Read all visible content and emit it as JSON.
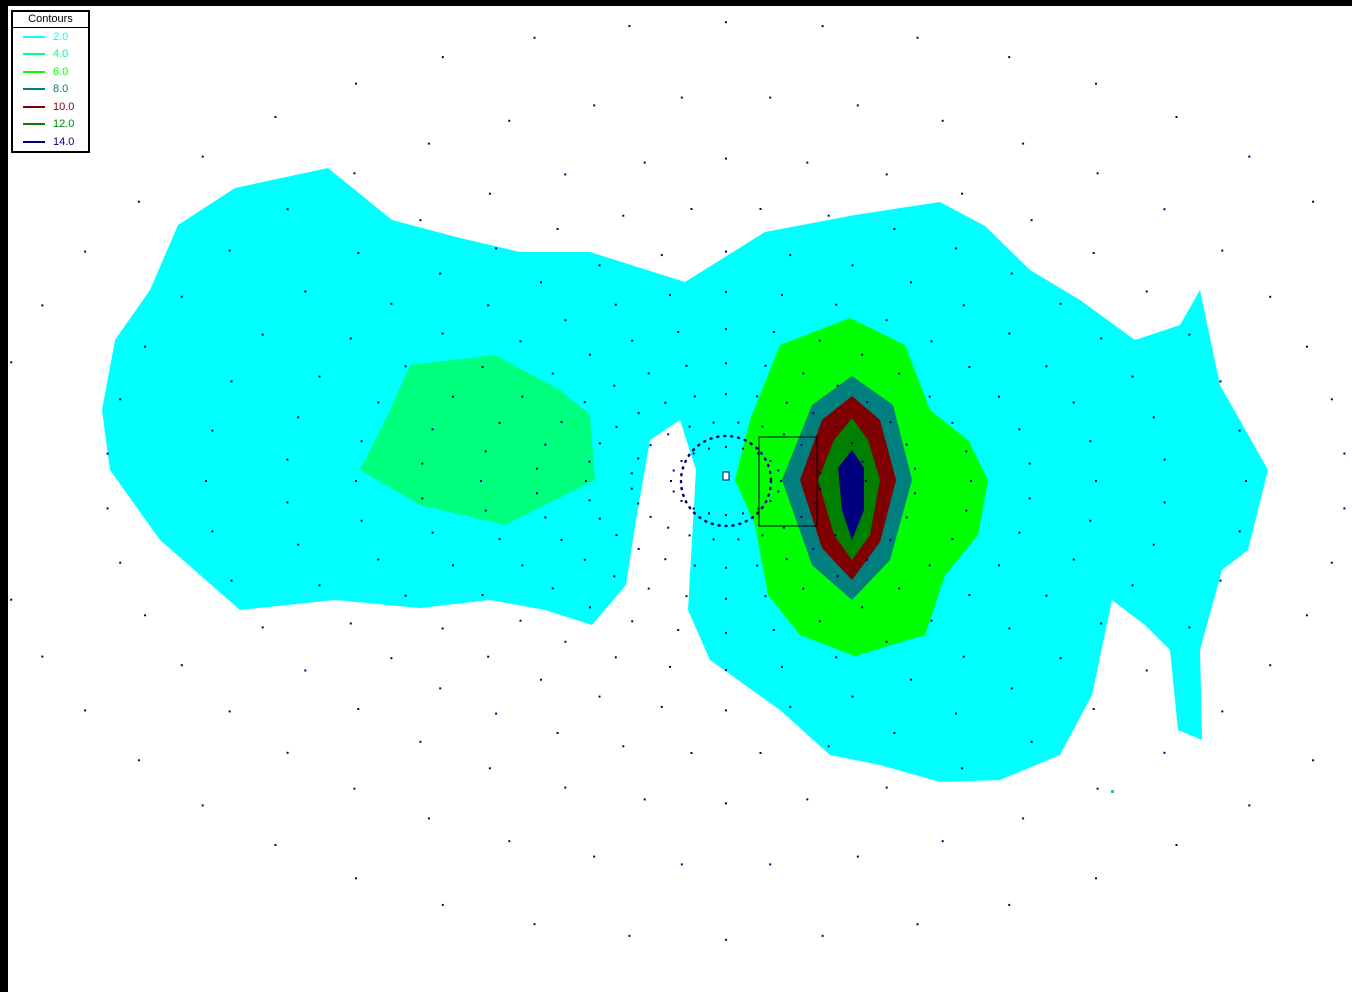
{
  "chart_data": {
    "type": "contour",
    "legend": {
      "title": "Contours",
      "placement": "top-left",
      "entries": [
        {
          "label": "2.0",
          "color": "#00ffff"
        },
        {
          "label": "4.0",
          "color": "#00ff7f"
        },
        {
          "label": "6.0",
          "color": "#00ff00"
        },
        {
          "label": "8.0",
          "color": "#007f7f"
        },
        {
          "label": "10.0",
          "color": "#7f0000"
        },
        {
          "label": "12.0",
          "color": "#007f00"
        },
        {
          "label": "14.0",
          "color": "#00007f"
        }
      ]
    },
    "levels": [
      2.0,
      4.0,
      6.0,
      8.0,
      10.0,
      12.0,
      14.0
    ],
    "peak_region": "right",
    "secondary_region": "left",
    "grid_points": "radial"
  }
}
